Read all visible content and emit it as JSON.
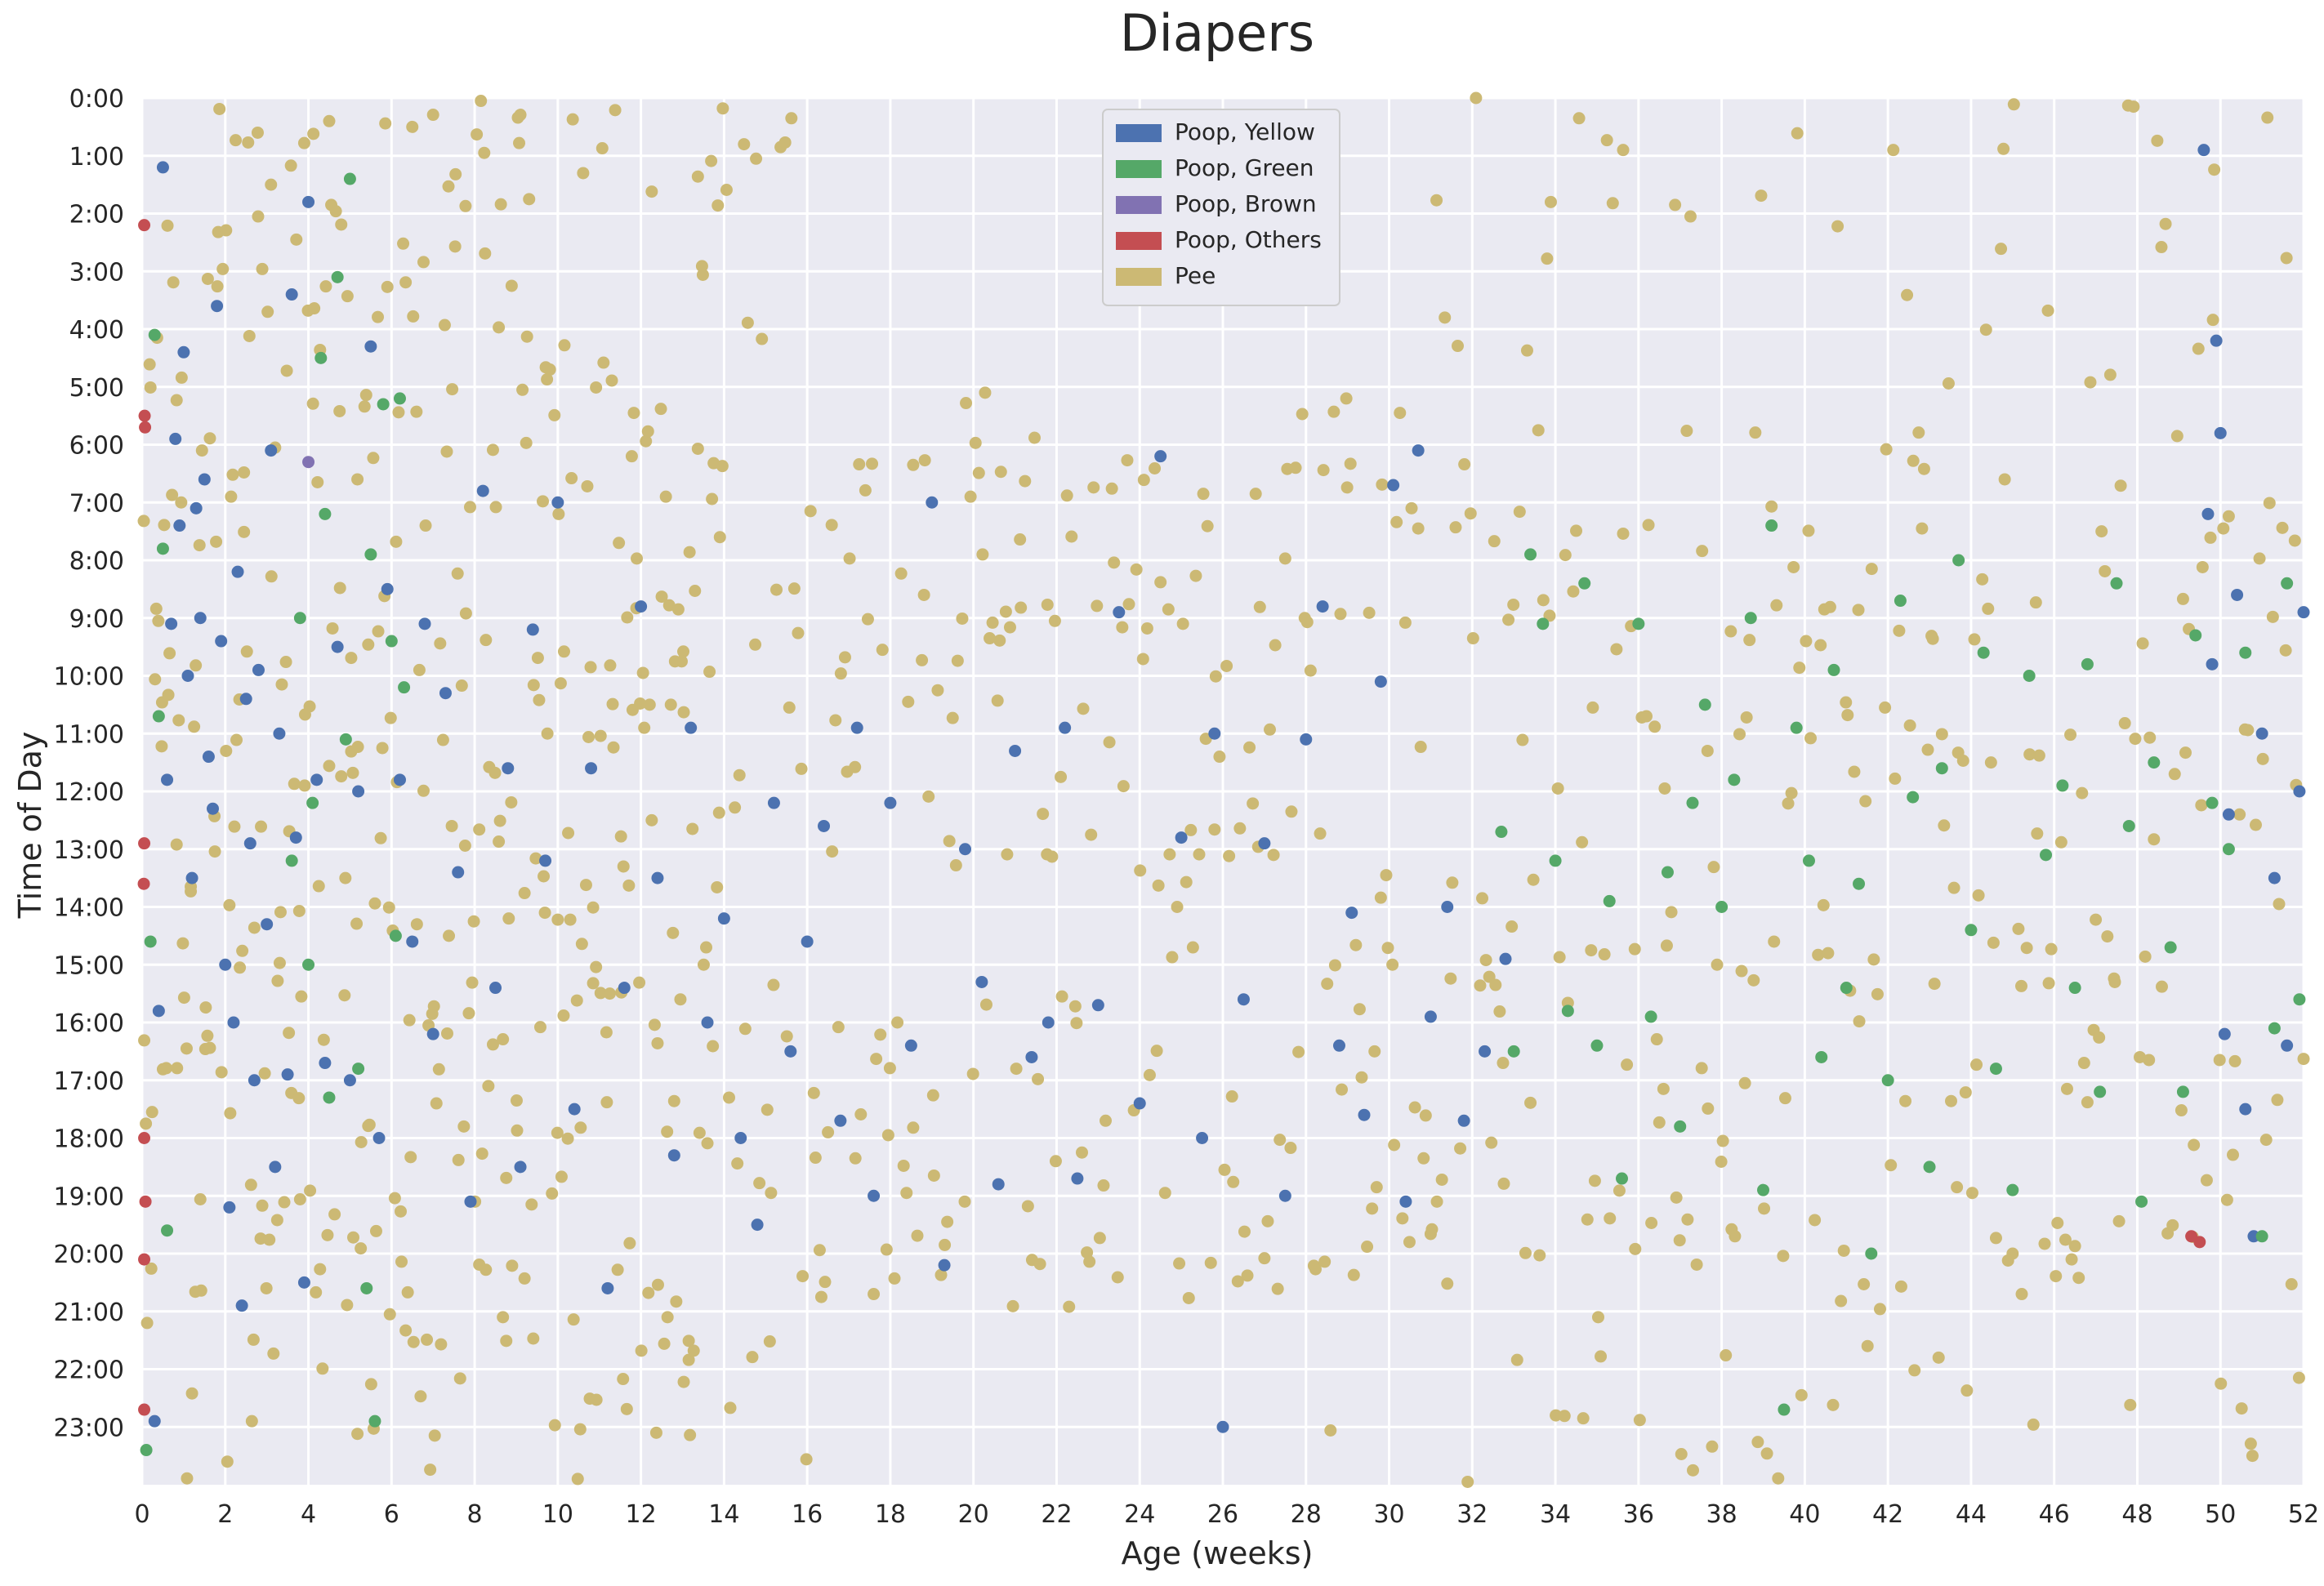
{
  "chart_data": {
    "type": "scatter",
    "title": "Diapers",
    "xlabel": "Age (weeks)",
    "ylabel": "Time of Day",
    "xlim": [
      0,
      52
    ],
    "ylim_hours": [
      0,
      24
    ],
    "y_inverted": true,
    "x_ticks": [
      "0",
      "2",
      "4",
      "6",
      "8",
      "10",
      "12",
      "14",
      "16",
      "18",
      "20",
      "22",
      "24",
      "26",
      "28",
      "30",
      "32",
      "34",
      "36",
      "38",
      "40",
      "42",
      "44",
      "46",
      "48",
      "50",
      "52"
    ],
    "y_ticks": [
      "0:00",
      "1:00",
      "2:00",
      "3:00",
      "4:00",
      "5:00",
      "6:00",
      "7:00",
      "8:00",
      "9:00",
      "10:00",
      "11:00",
      "12:00",
      "13:00",
      "14:00",
      "15:00",
      "16:00",
      "17:00",
      "18:00",
      "19:00",
      "20:00",
      "21:00",
      "22:00",
      "23:00"
    ],
    "grid": true,
    "legend_position": "top-center",
    "background": "#eaeaf2",
    "series": [
      {
        "name": "Poop, Yellow",
        "color": "#4c72b0",
        "points": [
          [
            0.3,
            22.9
          ],
          [
            0.4,
            15.8
          ],
          [
            0.5,
            1.2
          ],
          [
            0.6,
            11.8
          ],
          [
            0.7,
            9.1
          ],
          [
            0.8,
            5.9
          ],
          [
            0.9,
            7.4
          ],
          [
            1.0,
            4.4
          ],
          [
            1.1,
            10.0
          ],
          [
            1.2,
            13.5
          ],
          [
            1.3,
            7.1
          ],
          [
            1.4,
            9.0
          ],
          [
            1.5,
            6.6
          ],
          [
            1.6,
            11.4
          ],
          [
            1.7,
            12.3
          ],
          [
            1.8,
            3.6
          ],
          [
            1.9,
            9.4
          ],
          [
            2.0,
            15.0
          ],
          [
            2.1,
            19.2
          ],
          [
            2.2,
            16.0
          ],
          [
            2.3,
            8.2
          ],
          [
            2.4,
            20.9
          ],
          [
            2.5,
            10.4
          ],
          [
            2.6,
            12.9
          ],
          [
            2.7,
            17.0
          ],
          [
            2.8,
            9.9
          ],
          [
            3.0,
            14.3
          ],
          [
            3.1,
            6.1
          ],
          [
            3.2,
            18.5
          ],
          [
            3.3,
            11.0
          ],
          [
            3.5,
            16.9
          ],
          [
            3.6,
            3.4
          ],
          [
            3.7,
            12.8
          ],
          [
            3.9,
            20.5
          ],
          [
            4.0,
            1.8
          ],
          [
            4.2,
            11.8
          ],
          [
            4.4,
            16.7
          ],
          [
            4.7,
            9.5
          ],
          [
            5.0,
            17.0
          ],
          [
            5.2,
            12.0
          ],
          [
            5.5,
            4.3
          ],
          [
            5.7,
            18.0
          ],
          [
            5.9,
            8.5
          ],
          [
            6.2,
            11.8
          ],
          [
            6.5,
            14.6
          ],
          [
            6.8,
            9.1
          ],
          [
            7.0,
            16.2
          ],
          [
            7.3,
            10.3
          ],
          [
            7.6,
            13.4
          ],
          [
            7.9,
            19.1
          ],
          [
            8.2,
            6.8
          ],
          [
            8.5,
            15.4
          ],
          [
            8.8,
            11.6
          ],
          [
            9.1,
            18.5
          ],
          [
            9.4,
            9.2
          ],
          [
            9.7,
            13.2
          ],
          [
            10.0,
            7.0
          ],
          [
            10.4,
            17.5
          ],
          [
            10.8,
            11.6
          ],
          [
            11.2,
            20.6
          ],
          [
            11.6,
            15.4
          ],
          [
            12.0,
            8.8
          ],
          [
            12.4,
            13.5
          ],
          [
            12.8,
            18.3
          ],
          [
            13.2,
            10.9
          ],
          [
            13.6,
            16.0
          ],
          [
            14.0,
            14.2
          ],
          [
            14.4,
            18.0
          ],
          [
            14.8,
            19.5
          ],
          [
            15.2,
            12.2
          ],
          [
            15.6,
            16.5
          ],
          [
            16.0,
            14.6
          ],
          [
            16.4,
            12.6
          ],
          [
            16.8,
            17.7
          ],
          [
            17.2,
            10.9
          ],
          [
            17.6,
            19.0
          ],
          [
            18.0,
            12.2
          ],
          [
            18.5,
            16.4
          ],
          [
            19.0,
            7.0
          ],
          [
            19.3,
            20.2
          ],
          [
            19.8,
            13.0
          ],
          [
            20.2,
            15.3
          ],
          [
            20.6,
            18.8
          ],
          [
            21.0,
            11.3
          ],
          [
            21.4,
            16.6
          ],
          [
            21.8,
            16.0
          ],
          [
            22.2,
            10.9
          ],
          [
            22.5,
            18.7
          ],
          [
            23.0,
            15.7
          ],
          [
            23.5,
            8.9
          ],
          [
            24.0,
            17.4
          ],
          [
            24.5,
            6.2
          ],
          [
            25.0,
            12.8
          ],
          [
            25.5,
            18.0
          ],
          [
            25.8,
            11.0
          ],
          [
            26.0,
            23.0
          ],
          [
            26.5,
            15.6
          ],
          [
            27.0,
            12.9
          ],
          [
            27.5,
            19.0
          ],
          [
            28.0,
            11.1
          ],
          [
            28.4,
            8.8
          ],
          [
            28.8,
            16.4
          ],
          [
            29.1,
            14.1
          ],
          [
            29.4,
            17.6
          ],
          [
            29.8,
            10.1
          ],
          [
            30.1,
            6.7
          ],
          [
            30.4,
            19.1
          ],
          [
            30.7,
            6.1
          ],
          [
            31.0,
            15.9
          ],
          [
            31.4,
            14.0
          ],
          [
            31.8,
            17.7
          ],
          [
            32.3,
            16.5
          ],
          [
            32.8,
            14.9
          ],
          [
            49.6,
            0.9
          ],
          [
            49.7,
            7.2
          ],
          [
            49.8,
            9.8
          ],
          [
            49.9,
            4.2
          ],
          [
            50.0,
            5.8
          ],
          [
            50.1,
            16.2
          ],
          [
            50.2,
            12.4
          ],
          [
            50.4,
            8.6
          ],
          [
            50.6,
            17.5
          ],
          [
            50.8,
            19.7
          ],
          [
            51.0,
            11.0
          ],
          [
            51.3,
            13.5
          ],
          [
            51.6,
            16.4
          ],
          [
            51.9,
            12.0
          ],
          [
            52.0,
            8.9
          ]
        ]
      },
      {
        "name": "Poop, Green",
        "color": "#55a868",
        "points": [
          [
            0.1,
            23.4
          ],
          [
            0.2,
            14.6
          ],
          [
            0.3,
            4.1
          ],
          [
            0.4,
            10.7
          ],
          [
            0.5,
            7.8
          ],
          [
            0.6,
            19.6
          ],
          [
            3.6,
            13.2
          ],
          [
            3.8,
            9.0
          ],
          [
            4.0,
            15.0
          ],
          [
            4.1,
            12.2
          ],
          [
            4.3,
            4.5
          ],
          [
            4.4,
            7.2
          ],
          [
            4.5,
            17.3
          ],
          [
            4.7,
            3.1
          ],
          [
            4.9,
            11.1
          ],
          [
            5.0,
            1.4
          ],
          [
            5.2,
            16.8
          ],
          [
            5.4,
            20.6
          ],
          [
            5.5,
            7.9
          ],
          [
            5.6,
            22.9
          ],
          [
            5.8,
            5.3
          ],
          [
            6.0,
            9.4
          ],
          [
            6.1,
            14.5
          ],
          [
            6.2,
            5.2
          ],
          [
            6.3,
            10.2
          ],
          [
            32.7,
            12.7
          ],
          [
            33.0,
            16.5
          ],
          [
            33.4,
            7.9
          ],
          [
            33.7,
            9.1
          ],
          [
            34.0,
            13.2
          ],
          [
            34.3,
            15.8
          ],
          [
            34.7,
            8.4
          ],
          [
            35.0,
            16.4
          ],
          [
            35.3,
            13.9
          ],
          [
            35.6,
            18.7
          ],
          [
            36.0,
            9.1
          ],
          [
            36.3,
            15.9
          ],
          [
            36.7,
            13.4
          ],
          [
            37.0,
            17.8
          ],
          [
            37.3,
            12.2
          ],
          [
            37.6,
            10.5
          ],
          [
            38.0,
            14.0
          ],
          [
            38.3,
            11.8
          ],
          [
            38.7,
            9.0
          ],
          [
            39.0,
            18.9
          ],
          [
            39.2,
            7.4
          ],
          [
            39.5,
            22.7
          ],
          [
            39.8,
            10.9
          ],
          [
            40.1,
            13.2
          ],
          [
            40.4,
            16.6
          ],
          [
            40.7,
            9.9
          ],
          [
            41.0,
            15.4
          ],
          [
            41.3,
            13.6
          ],
          [
            41.6,
            20.0
          ],
          [
            42.0,
            17.0
          ],
          [
            42.3,
            8.7
          ],
          [
            42.6,
            12.1
          ],
          [
            43.0,
            18.5
          ],
          [
            43.3,
            11.6
          ],
          [
            43.7,
            8.0
          ],
          [
            44.0,
            14.4
          ],
          [
            44.3,
            9.6
          ],
          [
            44.6,
            16.8
          ],
          [
            45.0,
            18.9
          ],
          [
            45.4,
            10.0
          ],
          [
            45.8,
            13.1
          ],
          [
            46.2,
            11.9
          ],
          [
            46.5,
            15.4
          ],
          [
            46.8,
            9.8
          ],
          [
            47.1,
            17.2
          ],
          [
            47.5,
            8.4
          ],
          [
            47.8,
            12.6
          ],
          [
            48.1,
            19.1
          ],
          [
            48.4,
            11.5
          ],
          [
            48.8,
            14.7
          ],
          [
            49.1,
            17.2
          ],
          [
            49.4,
            9.3
          ],
          [
            49.8,
            12.2
          ],
          [
            50.2,
            13.0
          ],
          [
            50.6,
            9.6
          ],
          [
            51.0,
            19.7
          ],
          [
            51.3,
            16.1
          ],
          [
            51.6,
            8.4
          ],
          [
            51.9,
            15.6
          ]
        ]
      },
      {
        "name": "Poop, Brown",
        "color": "#8172b2",
        "points": [
          [
            4.0,
            6.3
          ]
        ]
      },
      {
        "name": "Poop, Others",
        "color": "#c44e52",
        "points": [
          [
            0.05,
            2.2
          ],
          [
            0.06,
            5.5
          ],
          [
            0.07,
            5.7
          ],
          [
            0.05,
            12.9
          ],
          [
            0.04,
            13.6
          ],
          [
            0.05,
            18.0
          ],
          [
            0.08,
            19.1
          ],
          [
            0.05,
            20.1
          ],
          [
            0.05,
            22.7
          ],
          [
            49.3,
            19.7
          ],
          [
            49.5,
            19.8
          ]
        ]
      },
      {
        "name": "Pee",
        "color": "#ccb974",
        "points": []
      }
    ]
  }
}
